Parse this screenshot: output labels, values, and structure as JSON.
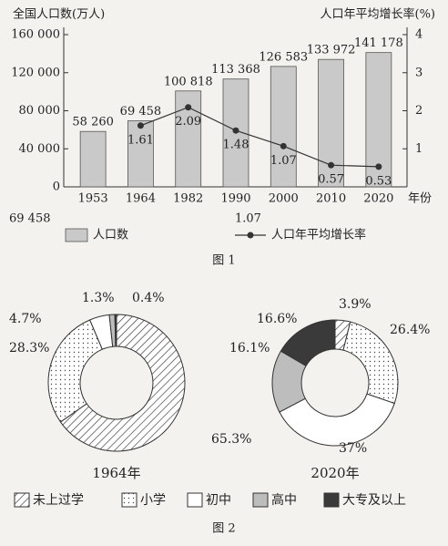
{
  "captions": [
    "图 1",
    "图 2"
  ],
  "chart_data": [
    {
      "type": "bar",
      "ylabel": "全国人口数(万人)",
      "y2label": "人口年平均增长率(%)",
      "xlabel": "年份",
      "categories": [
        "1953",
        "1964",
        "1982",
        "1990",
        "2000",
        "2010",
        "2020"
      ],
      "series": [
        {
          "name": "人口数",
          "type": "bar",
          "color": "#c9c9c9",
          "values": [
            58260,
            69458,
            100818,
            113368,
            126583,
            133972,
            141178
          ],
          "value_labels": [
            "58 260",
            "69 458",
            "100 818",
            "113 368",
            "126 583",
            "133 972",
            "141 178"
          ]
        },
        {
          "name": "人口年平均增长率",
          "type": "line",
          "axis": "y2",
          "color": "#333333",
          "values": [
            null,
            1.61,
            2.09,
            1.48,
            1.07,
            0.57,
            0.53
          ]
        }
      ],
      "ylim": [
        0,
        160000
      ],
      "yticks": [
        0,
        {
          "value": 40000,
          "label": "40 000"
        },
        {
          "value": 80000,
          "label": "80 000"
        },
        {
          "value": 120000,
          "label": "120 000"
        },
        {
          "value": 160000,
          "label": "160 000"
        }
      ],
      "y2lim": [
        0,
        4
      ],
      "y2ticks": [
        1,
        2,
        3,
        4
      ],
      "annotations": [
        "69 458",
        "1.07"
      ]
    },
    {
      "type": "pie",
      "donut": true,
      "categories": [
        "未上过学",
        "小学",
        "初中",
        "高中",
        "大专及以上"
      ],
      "fills": [
        "hatch",
        "dots",
        "white",
        "gray",
        "dark"
      ],
      "series": [
        {
          "name": "1964年",
          "values": [
            65.3,
            28.3,
            4.7,
            1.3,
            0.4
          ],
          "value_labels": [
            "65.3%",
            "28.3%",
            "4.7%",
            "1.3%",
            "0.4%"
          ]
        },
        {
          "name": "2020年",
          "values": [
            3.9,
            26.4,
            37,
            16.1,
            16.6
          ],
          "value_labels": [
            "3.9%",
            "26.4%",
            "37%",
            "16.1%",
            "16.6%"
          ]
        }
      ]
    }
  ]
}
